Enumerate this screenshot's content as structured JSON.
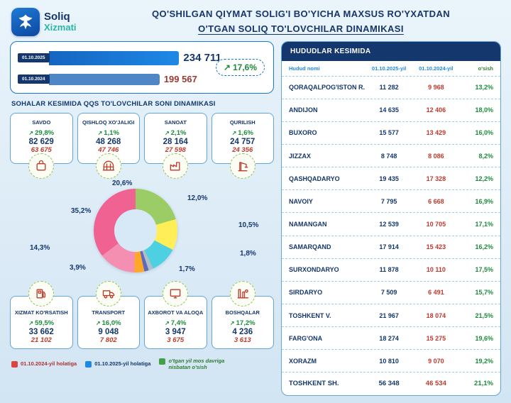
{
  "header": {
    "logo_title": "Soliq",
    "logo_subtitle": "Xizmati",
    "title_line1": "QO'SHILGAN QIYMAT SOLIG'I BO'YICHA MAXSUS RO'YXATDAN",
    "title_line2": "O'TGAN SOLIQ TO'LOVCHILAR DINAMIKASI"
  },
  "totals": {
    "bars": [
      {
        "label": "01.10.2025",
        "value": "234 711"
      },
      {
        "label": "01.10.2024",
        "value": "199 567"
      }
    ],
    "growth": "17,6%",
    "arrow": "↗"
  },
  "sectors": {
    "section_title": "SOHALAR KESIMIDA QQS TO'LOVCHILAR SONI DINAMIKASI",
    "top": [
      {
        "label": "SAVDO",
        "growth": "29,8%",
        "value_2025": "82 629",
        "value_2024": "63 675",
        "share": "35,2%",
        "icon": "shopping-bag-icon"
      },
      {
        "label": "QISHLOQ XO'JALIGI",
        "growth": "1,1%",
        "value_2025": "48 268",
        "value_2024": "47 746",
        "share": "20,6%",
        "icon": "greenhouse-icon"
      },
      {
        "label": "SANOAT",
        "growth": "2,1%",
        "value_2025": "28 164",
        "value_2024": "27 598",
        "share": "12,0%",
        "icon": "factory-icon"
      },
      {
        "label": "QURILISH",
        "growth": "1,6%",
        "value_2025": "24 757",
        "value_2024": "24 356",
        "share": "10,5%",
        "icon": "crane-icon"
      }
    ],
    "bottom": [
      {
        "label": "XIZMAT KO'RSATISH",
        "growth": "59,5%",
        "value_2025": "33 662",
        "value_2024": "21 102",
        "share": "14,3%",
        "icon": "fuel-pump-icon"
      },
      {
        "label": "TRANSPORT",
        "growth": "16,0%",
        "value_2025": "9 048",
        "value_2024": "7 802",
        "share": "3,9%",
        "icon": "truck-icon"
      },
      {
        "label": "AXBOROT VA ALOQA",
        "growth": "7,4%",
        "value_2025": "3 947",
        "value_2024": "3 675",
        "share": "1,7%",
        "icon": "monitor-icon"
      },
      {
        "label": "BOSHQALAR",
        "growth": "17,2%",
        "value_2025": "4 236",
        "value_2024": "3 613",
        "share": "1,8%",
        "icon": "industry-icon"
      }
    ]
  },
  "legend": [
    {
      "color": "#d9453f",
      "label": "01.10.2024-yil holatiga"
    },
    {
      "color": "#1e88e5",
      "label": "01.10.2025-yil holatiga"
    },
    {
      "color": "#43a047",
      "label": "o'tgan yil mos davriga nisbatan o'sish"
    }
  ],
  "regions_table": {
    "title": "HUDUDLAR KESIMIDA",
    "columns": [
      "Hudud nomi",
      "01.10.2025-yil",
      "01.10.2024-yil",
      "o'sish"
    ],
    "rows": [
      {
        "name": "QORAQALPOG'ISTON R.",
        "v2025": "11 282",
        "v2024": "9 968",
        "growth": "13,2%"
      },
      {
        "name": "ANDIJON",
        "v2025": "14 635",
        "v2024": "12 406",
        "growth": "18,0%"
      },
      {
        "name": "BUXORO",
        "v2025": "15 577",
        "v2024": "13 429",
        "growth": "16,0%"
      },
      {
        "name": "JIZZAX",
        "v2025": "8 748",
        "v2024": "8 086",
        "growth": "8,2%"
      },
      {
        "name": "QASHQADARYO",
        "v2025": "19 435",
        "v2024": "17 328",
        "growth": "12,2%"
      },
      {
        "name": "NAVOIY",
        "v2025": "7 795",
        "v2024": "6 668",
        "growth": "16,9%"
      },
      {
        "name": "NAMANGAN",
        "v2025": "12 539",
        "v2024": "10 705",
        "growth": "17,1%"
      },
      {
        "name": "SAMARQAND",
        "v2025": "17 914",
        "v2024": "15 423",
        "growth": "16,2%"
      },
      {
        "name": "SURXONDARYO",
        "v2025": "11 878",
        "v2024": "10 110",
        "growth": "17,5%"
      },
      {
        "name": "SIRDARYO",
        "v2025": "7 509",
        "v2024": "6 491",
        "growth": "15,7%"
      },
      {
        "name": "TOSHKENT V.",
        "v2025": "21 967",
        "v2024": "18 074",
        "growth": "21,5%"
      },
      {
        "name": "FARG'ONA",
        "v2025": "18 274",
        "v2024": "15 275",
        "growth": "19,6%"
      },
      {
        "name": "XORAZM",
        "v2025": "10 810",
        "v2024": "9 070",
        "growth": "19,2%"
      },
      {
        "name": "TOSHKENT SH.",
        "v2025": "56 348",
        "v2024": "46 534",
        "growth": "21,1%"
      }
    ]
  },
  "chart_data": [
    {
      "type": "bar",
      "title": "QQS bo'yicha maxsus ro'yxatdan o'tgan soliq to'lovchilar soni",
      "orientation": "horizontal",
      "categories": [
        "01.10.2025",
        "01.10.2024"
      ],
      "values": [
        234711,
        199567
      ],
      "growth_pct": 17.6,
      "colors": [
        "#1e88e5",
        "#4f86c6"
      ]
    },
    {
      "type": "pie",
      "title": "Sohalar kesimida QQS to'lovchilar ulushi (%)",
      "labels": [
        "QISHLOQ XO'JALIGI",
        "SANOAT",
        "QURILISH",
        "BOSHQALAR",
        "AXBOROT VA ALOQA",
        "TRANSPORT",
        "XIZMAT KO'RSATISH",
        "SAVDO"
      ],
      "values": [
        20.6,
        12.0,
        10.5,
        1.8,
        1.7,
        3.9,
        14.3,
        35.2
      ],
      "colors": [
        "#9ccc65",
        "#ffee58",
        "#4dd0e1",
        "#b0bec5",
        "#5c6bc0",
        "#ffa726",
        "#f48fb1",
        "#f06292"
      ],
      "donut": true
    },
    {
      "type": "table",
      "title": "HUDUDLAR KESIMIDA",
      "columns": [
        "Hudud nomi",
        "01.10.2025-yil",
        "01.10.2024-yil",
        "o'sish"
      ],
      "rows": [
        [
          "QORAQALPOG'ISTON R.",
          11282,
          9968,
          "13,2%"
        ],
        [
          "ANDIJON",
          14635,
          12406,
          "18,0%"
        ],
        [
          "BUXORO",
          15577,
          13429,
          "16,0%"
        ],
        [
          "JIZZAX",
          8748,
          8086,
          "8,2%"
        ],
        [
          "QASHQADARYO",
          19435,
          17328,
          "12,2%"
        ],
        [
          "NAVOIY",
          7795,
          6668,
          "16,9%"
        ],
        [
          "NAMANGAN",
          12539,
          10705,
          "17,1%"
        ],
        [
          "SAMARQAND",
          17914,
          15423,
          "16,2%"
        ],
        [
          "SURXONDARYO",
          11878,
          10110,
          "17,5%"
        ],
        [
          "SIRDARYO",
          7509,
          6491,
          "15,7%"
        ],
        [
          "TOSHKENT V.",
          21967,
          18074,
          "21,5%"
        ],
        [
          "FARG'ONA",
          18274,
          15275,
          "19,6%"
        ],
        [
          "XORAZM",
          10810,
          9070,
          "19,2%"
        ],
        [
          "TOSHKENT SH.",
          56348,
          46534,
          "21,1%"
        ]
      ]
    }
  ]
}
